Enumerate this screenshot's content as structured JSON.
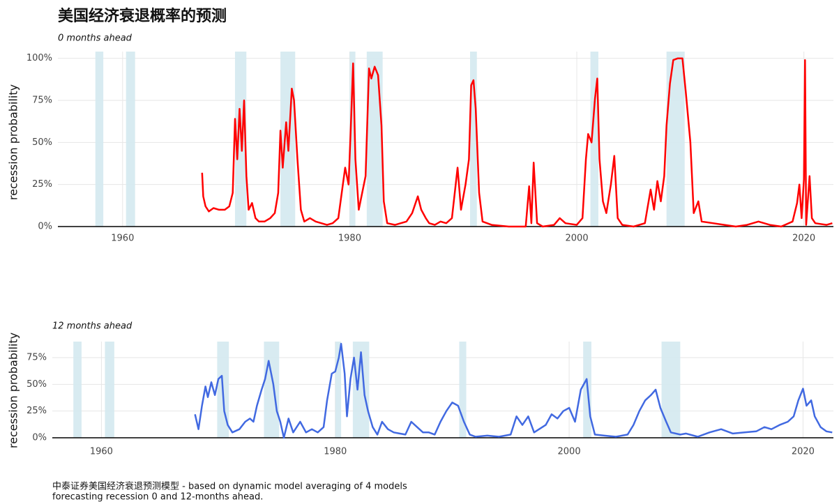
{
  "chart_data": [
    {
      "type": "line",
      "title": "美国经济衰退概率的预测",
      "subtitle": "0 months ahead",
      "y_label": "recession probability",
      "color": "#ff0000",
      "x": [
        1967.0,
        1967.1,
        1967.3,
        1967.6,
        1968.0,
        1968.5,
        1969.0,
        1969.4,
        1969.7,
        1969.9,
        1970.1,
        1970.3,
        1970.5,
        1970.7,
        1970.9,
        1971.1,
        1971.4,
        1971.7,
        1972.0,
        1972.5,
        1973.0,
        1973.4,
        1973.7,
        1973.9,
        1974.1,
        1974.4,
        1974.6,
        1974.9,
        1975.1,
        1975.4,
        1975.7,
        1976.0,
        1976.5,
        1977.0,
        1977.5,
        1978.0,
        1978.5,
        1979.0,
        1979.3,
        1979.6,
        1979.9,
        1980.1,
        1980.3,
        1980.5,
        1980.8,
        1981.1,
        1981.4,
        1981.7,
        1981.9,
        1982.2,
        1982.5,
        1982.8,
        1983.0,
        1983.3,
        1984.0,
        1985.0,
        1985.5,
        1986.0,
        1986.3,
        1986.7,
        1987.0,
        1987.5,
        1988.0,
        1988.5,
        1989.0,
        1989.5,
        1989.8,
        1990.2,
        1990.5,
        1990.7,
        1990.9,
        1991.1,
        1991.4,
        1991.7,
        1992.5,
        1994.0,
        1995.5,
        1995.8,
        1996.0,
        1996.2,
        1996.5,
        1997.0,
        1998.0,
        1998.5,
        1999.0,
        2000.0,
        2000.5,
        2000.8,
        2001.0,
        2001.3,
        2001.6,
        2001.8,
        2002.0,
        2002.3,
        2002.6,
        2003.0,
        2003.3,
        2003.6,
        2004.0,
        2005.0,
        2006.0,
        2006.5,
        2006.8,
        2007.1,
        2007.4,
        2007.7,
        2007.9,
        2008.2,
        2008.5,
        2008.9,
        2009.3,
        2009.6,
        2010.0,
        2010.3,
        2010.7,
        2011.0,
        2012.0,
        2013.0,
        2014.0,
        2015.0,
        2016.0,
        2017.0,
        2018.0,
        2019.0,
        2019.4,
        2019.6,
        2019.8,
        2020.0,
        2020.1,
        2020.2,
        2020.5,
        2020.7,
        2021.0,
        2022.0,
        2022.5
      ],
      "values": [
        32,
        18,
        12,
        9,
        11,
        10,
        10,
        12,
        20,
        64,
        40,
        70,
        45,
        75,
        30,
        10,
        14,
        5,
        3,
        3,
        5,
        8,
        20,
        57,
        35,
        62,
        45,
        82,
        75,
        40,
        10,
        3,
        5,
        3,
        2,
        1,
        2,
        5,
        20,
        35,
        25,
        60,
        97,
        40,
        10,
        20,
        30,
        94,
        88,
        95,
        90,
        60,
        15,
        2,
        1,
        3,
        8,
        18,
        10,
        5,
        2,
        1,
        3,
        2,
        5,
        35,
        10,
        25,
        40,
        84,
        87,
        70,
        20,
        3,
        1,
        0,
        0,
        24,
        2,
        38,
        2,
        0,
        1,
        5,
        2,
        1,
        5,
        40,
        55,
        50,
        76,
        88,
        40,
        15,
        8,
        25,
        42,
        5,
        1,
        0,
        2,
        22,
        10,
        27,
        15,
        30,
        60,
        85,
        99,
        100,
        100,
        80,
        50,
        8,
        15,
        3,
        2,
        1,
        0,
        1,
        3,
        1,
        0,
        3,
        14,
        25,
        5,
        28,
        99,
        1,
        30,
        5,
        2,
        1,
        2
      ],
      "shaded_periods": [
        [
          1957.6,
          1958.3
        ],
        [
          1960.3,
          1961.1
        ],
        [
          1969.9,
          1970.9
        ],
        [
          1973.9,
          1975.2
        ],
        [
          1980.0,
          1980.5
        ],
        [
          1981.5,
          1982.9
        ],
        [
          1990.6,
          1991.2
        ],
        [
          2001.2,
          2001.9
        ],
        [
          2007.9,
          2009.5
        ]
      ],
      "shade_color": "#d4e9f0",
      "xlim": [
        1954.3,
        2022.6
      ],
      "xticks": [
        1960,
        1980,
        2000,
        2020
      ],
      "ylim": [
        0,
        104
      ],
      "yticks": [
        {
          "value": 0,
          "label": "0%"
        },
        {
          "value": 25,
          "label": "25%"
        },
        {
          "value": 50,
          "label": "50%"
        },
        {
          "value": 75,
          "label": "75%"
        },
        {
          "value": 100,
          "label": "100%"
        }
      ],
      "grid": true
    },
    {
      "type": "line",
      "subtitle": "12 months ahead",
      "y_label": "recession probability",
      "color": "#4169e1",
      "x": [
        1968.0,
        1968.3,
        1968.6,
        1968.9,
        1969.1,
        1969.4,
        1969.7,
        1970.0,
        1970.3,
        1970.5,
        1970.8,
        1971.2,
        1971.8,
        1972.3,
        1972.7,
        1973.0,
        1973.3,
        1973.7,
        1974.0,
        1974.3,
        1974.7,
        1975.0,
        1975.3,
        1975.6,
        1976.0,
        1976.4,
        1977.0,
        1977.5,
        1978.0,
        1978.5,
        1979.0,
        1979.3,
        1979.7,
        1980.0,
        1980.3,
        1980.5,
        1980.8,
        1981.0,
        1981.3,
        1981.6,
        1981.9,
        1982.2,
        1982.5,
        1982.8,
        1983.2,
        1983.6,
        1984.0,
        1984.5,
        1985.0,
        1985.5,
        1986.0,
        1986.5,
        1987.0,
        1987.5,
        1988.0,
        1988.5,
        1989.0,
        1989.5,
        1990.0,
        1990.5,
        1991.0,
        1991.5,
        1992.0,
        1993.0,
        1994.0,
        1995.0,
        1995.5,
        1996.0,
        1996.5,
        1997.0,
        1998.0,
        1998.5,
        1999.0,
        1999.5,
        2000.0,
        2000.5,
        2001.0,
        2001.5,
        2001.8,
        2002.2,
        2003.0,
        2004.0,
        2005.0,
        2005.5,
        2006.0,
        2006.5,
        2007.0,
        2007.4,
        2007.8,
        2008.3,
        2008.7,
        2009.5,
        2010.0,
        2011.0,
        2012.0,
        2013.0,
        2014.0,
        2015.0,
        2016.0,
        2016.7,
        2017.3,
        2018.0,
        2018.7,
        2019.2,
        2019.6,
        2020.0,
        2020.3,
        2020.7,
        2021.0,
        2021.5,
        2022.0,
        2022.5
      ],
      "values": [
        22,
        8,
        30,
        48,
        38,
        52,
        40,
        55,
        58,
        25,
        12,
        5,
        8,
        15,
        18,
        15,
        30,
        45,
        55,
        72,
        50,
        25,
        15,
        0,
        18,
        5,
        15,
        5,
        8,
        5,
        10,
        35,
        60,
        62,
        75,
        88,
        60,
        20,
        55,
        75,
        45,
        80,
        40,
        25,
        10,
        3,
        15,
        8,
        5,
        4,
        3,
        15,
        10,
        5,
        5,
        3,
        15,
        25,
        33,
        30,
        15,
        3,
        1,
        2,
        1,
        3,
        20,
        12,
        20,
        5,
        12,
        22,
        18,
        25,
        28,
        15,
        45,
        55,
        20,
        3,
        2,
        1,
        3,
        12,
        25,
        35,
        40,
        45,
        28,
        15,
        5,
        3,
        4,
        1,
        5,
        8,
        4,
        5,
        6,
        10,
        8,
        12,
        15,
        20,
        35,
        46,
        30,
        35,
        20,
        10,
        6,
        5
      ],
      "shaded_periods": [
        [
          1957.6,
          1958.3
        ],
        [
          1960.3,
          1961.1
        ],
        [
          1969.9,
          1970.9
        ],
        [
          1973.9,
          1975.2
        ],
        [
          1980.0,
          1980.5
        ],
        [
          1981.5,
          1982.9
        ],
        [
          1990.6,
          1991.2
        ],
        [
          2001.2,
          2001.9
        ],
        [
          2007.9,
          2009.5
        ]
      ],
      "shade_color": "#d4e9f0",
      "xlim": [
        1955.8,
        2022.6
      ],
      "xticks": [
        1960,
        1980,
        2000,
        2020
      ],
      "ylim": [
        0,
        90
      ],
      "yticks": [
        {
          "value": 0,
          "label": "0%"
        },
        {
          "value": 25,
          "label": "25%"
        },
        {
          "value": 50,
          "label": "50%"
        },
        {
          "value": 75,
          "label": "75%"
        }
      ],
      "grid": true,
      "caption": [
        "中泰证券美国经济衰退预测模型 - based on dynamic model averaging of 4 models",
        "forecasting recession 0 and 12-months ahead."
      ]
    }
  ]
}
